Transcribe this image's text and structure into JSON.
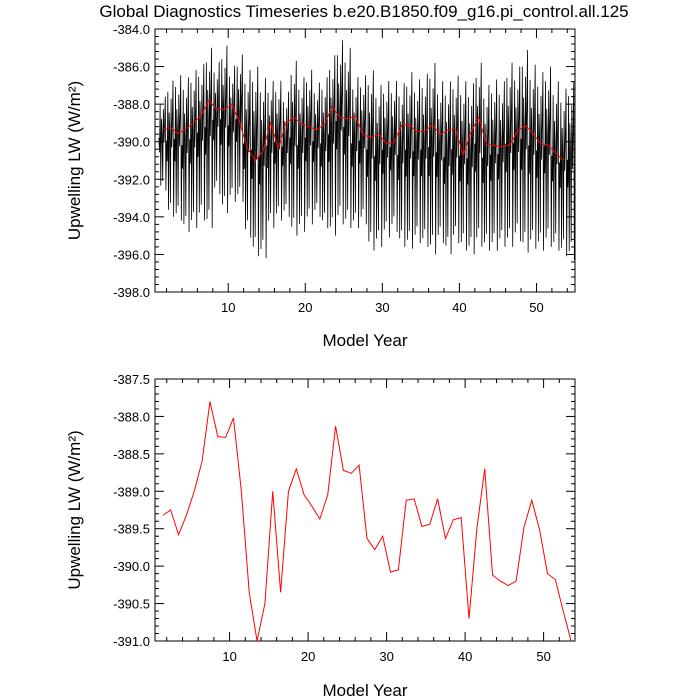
{
  "title": "Global Diagnostics Timeseries b.e20.B1850.f09_g16.pi_control.all.125",
  "chart_data": [
    {
      "type": "line",
      "xlabel": "Model Year",
      "ylabel": "Upwelling LW (W/m²)",
      "xlim": [
        0.5,
        55
      ],
      "ylim": [
        -398.0,
        -384.0
      ],
      "xticks": [
        10,
        20,
        30,
        40,
        50
      ],
      "yticks": [
        -398.0,
        -396.0,
        -394.0,
        -392.0,
        -390.0,
        -388.0,
        -386.0,
        -384.0
      ],
      "ytick_labels": [
        "-398.0",
        "-396.0",
        "-394.0",
        "-392.0",
        "-390.0",
        "-388.0",
        "-386.0",
        "-384.0"
      ],
      "series": [
        {
          "kind": "monthly",
          "color": "#000000",
          "annual_max": [
            -387.5,
            -386.6,
            -386.3,
            -386.4,
            -386.0,
            -385.7,
            -384.8,
            -385.6,
            -384.7,
            -385.8,
            -385.2,
            -386.0,
            -385.8,
            -386.4,
            -386.6,
            -386.6,
            -387.2,
            -385.5,
            -386.4,
            -386.0,
            -386.7,
            -386.4,
            -385.2,
            -384.4,
            -384.8,
            -386.4,
            -386.3,
            -386.0,
            -386.8,
            -386.6,
            -386.6,
            -386.7,
            -386.1,
            -386.5,
            -386.2,
            -385.6,
            -386.6,
            -386.6,
            -386.3,
            -386.6,
            -386.7,
            -385.6,
            -386.8,
            -386.5,
            -386.6,
            -385.6,
            -385.8,
            -384.9,
            -385.7,
            -386.1,
            -385.8,
            -386.6,
            -387.0,
            -386.6
          ],
          "annual_min": [
            -392.6,
            -394.0,
            -394.2,
            -394.8,
            -394.6,
            -394.2,
            -394.6,
            -392.8,
            -393.8,
            -393.2,
            -393.2,
            -395.1,
            -396.1,
            -396.2,
            -394.6,
            -394.2,
            -394.0,
            -395.0,
            -394.8,
            -394.4,
            -394.0,
            -394.6,
            -395.0,
            -394.4,
            -394.6,
            -394.6,
            -394.4,
            -395.8,
            -395.6,
            -395.1,
            -394.8,
            -395.6,
            -395.7,
            -395.4,
            -395.6,
            -396.0,
            -395.4,
            -396.0,
            -395.4,
            -395.8,
            -396.0,
            -395.6,
            -395.8,
            -395.8,
            -395.6,
            -395.6,
            -395.3,
            -395.9,
            -395.7,
            -395.8,
            -395.6,
            -395.8,
            -396.1,
            -396.3
          ]
        },
        {
          "kind": "annual",
          "color": "#ff0000",
          "x": [
            1.5,
            2.5,
            3.5,
            4.5,
            5.5,
            6.5,
            7.5,
            8.5,
            9.5,
            10.5,
            11.5,
            12.5,
            13.5,
            14.5,
            15.5,
            16.5,
            17.5,
            18.5,
            19.5,
            20.5,
            21.5,
            22.5,
            23.5,
            24.5,
            25.5,
            26.5,
            27.5,
            28.5,
            29.5,
            30.5,
            31.5,
            32.5,
            33.5,
            34.5,
            35.5,
            36.5,
            37.5,
            38.5,
            39.5,
            40.5,
            41.5,
            42.5,
            43.5,
            44.5,
            45.5,
            46.5,
            47.5,
            48.5,
            49.5,
            50.5,
            51.5,
            52.5,
            53.5
          ],
          "y": [
            -389.32,
            -389.25,
            -389.58,
            -389.32,
            -389.0,
            -388.6,
            -387.8,
            -388.27,
            -388.28,
            -388.02,
            -389.0,
            -390.35,
            -391.0,
            -390.5,
            -389.0,
            -390.35,
            -389.0,
            -388.7,
            -389.05,
            -389.2,
            -389.37,
            -389.05,
            -388.13,
            -388.72,
            -388.76,
            -388.65,
            -389.63,
            -389.78,
            -389.6,
            -390.08,
            -390.05,
            -389.12,
            -389.1,
            -389.47,
            -389.44,
            -389.1,
            -389.63,
            -389.38,
            -389.35,
            -390.7,
            -389.5,
            -388.7,
            -390.12,
            -390.2,
            -390.26,
            -390.2,
            -389.48,
            -389.12,
            -389.52,
            -390.1,
            -390.18,
            -390.6,
            -391.0
          ]
        }
      ]
    },
    {
      "type": "line",
      "xlabel": "Model Year",
      "ylabel": "Upwelling LW (W/m²)",
      "xlim": [
        0.5,
        54
      ],
      "ylim": [
        -391.0,
        -387.5
      ],
      "xticks": [
        10,
        20,
        30,
        40,
        50
      ],
      "yticks": [
        -391.0,
        -390.5,
        -390.0,
        -389.5,
        -389.0,
        -388.5,
        -388.0,
        -387.5
      ],
      "ytick_labels": [
        "-391.0",
        "-390.5",
        "-390.0",
        "-389.5",
        "-389.0",
        "-388.5",
        "-388.0",
        "-387.5"
      ],
      "series": [
        {
          "kind": "annual",
          "color": "#ff0000",
          "x": [
            1.5,
            2.5,
            3.5,
            4.5,
            5.5,
            6.5,
            7.5,
            8.5,
            9.5,
            10.5,
            11.5,
            12.5,
            13.5,
            14.5,
            15.5,
            16.5,
            17.5,
            18.5,
            19.5,
            20.5,
            21.5,
            22.5,
            23.5,
            24.5,
            25.5,
            26.5,
            27.5,
            28.5,
            29.5,
            30.5,
            31.5,
            32.5,
            33.5,
            34.5,
            35.5,
            36.5,
            37.5,
            38.5,
            39.5,
            40.5,
            41.5,
            42.5,
            43.5,
            44.5,
            45.5,
            46.5,
            47.5,
            48.5,
            49.5,
            50.5,
            51.5,
            52.5,
            53.5
          ],
          "y": [
            -389.32,
            -389.25,
            -389.58,
            -389.32,
            -389.0,
            -388.6,
            -387.8,
            -388.27,
            -388.28,
            -388.02,
            -389.0,
            -390.35,
            -391.0,
            -390.5,
            -389.0,
            -390.35,
            -389.0,
            -388.7,
            -389.05,
            -389.2,
            -389.37,
            -389.05,
            -388.13,
            -388.72,
            -388.76,
            -388.65,
            -389.63,
            -389.78,
            -389.6,
            -390.08,
            -390.05,
            -389.12,
            -389.1,
            -389.47,
            -389.44,
            -389.1,
            -389.63,
            -389.38,
            -389.35,
            -390.7,
            -389.5,
            -388.7,
            -390.12,
            -390.2,
            -390.26,
            -390.2,
            -389.48,
            -389.12,
            -389.52,
            -390.1,
            -390.18,
            -390.6,
            -391.0
          ]
        }
      ]
    }
  ]
}
